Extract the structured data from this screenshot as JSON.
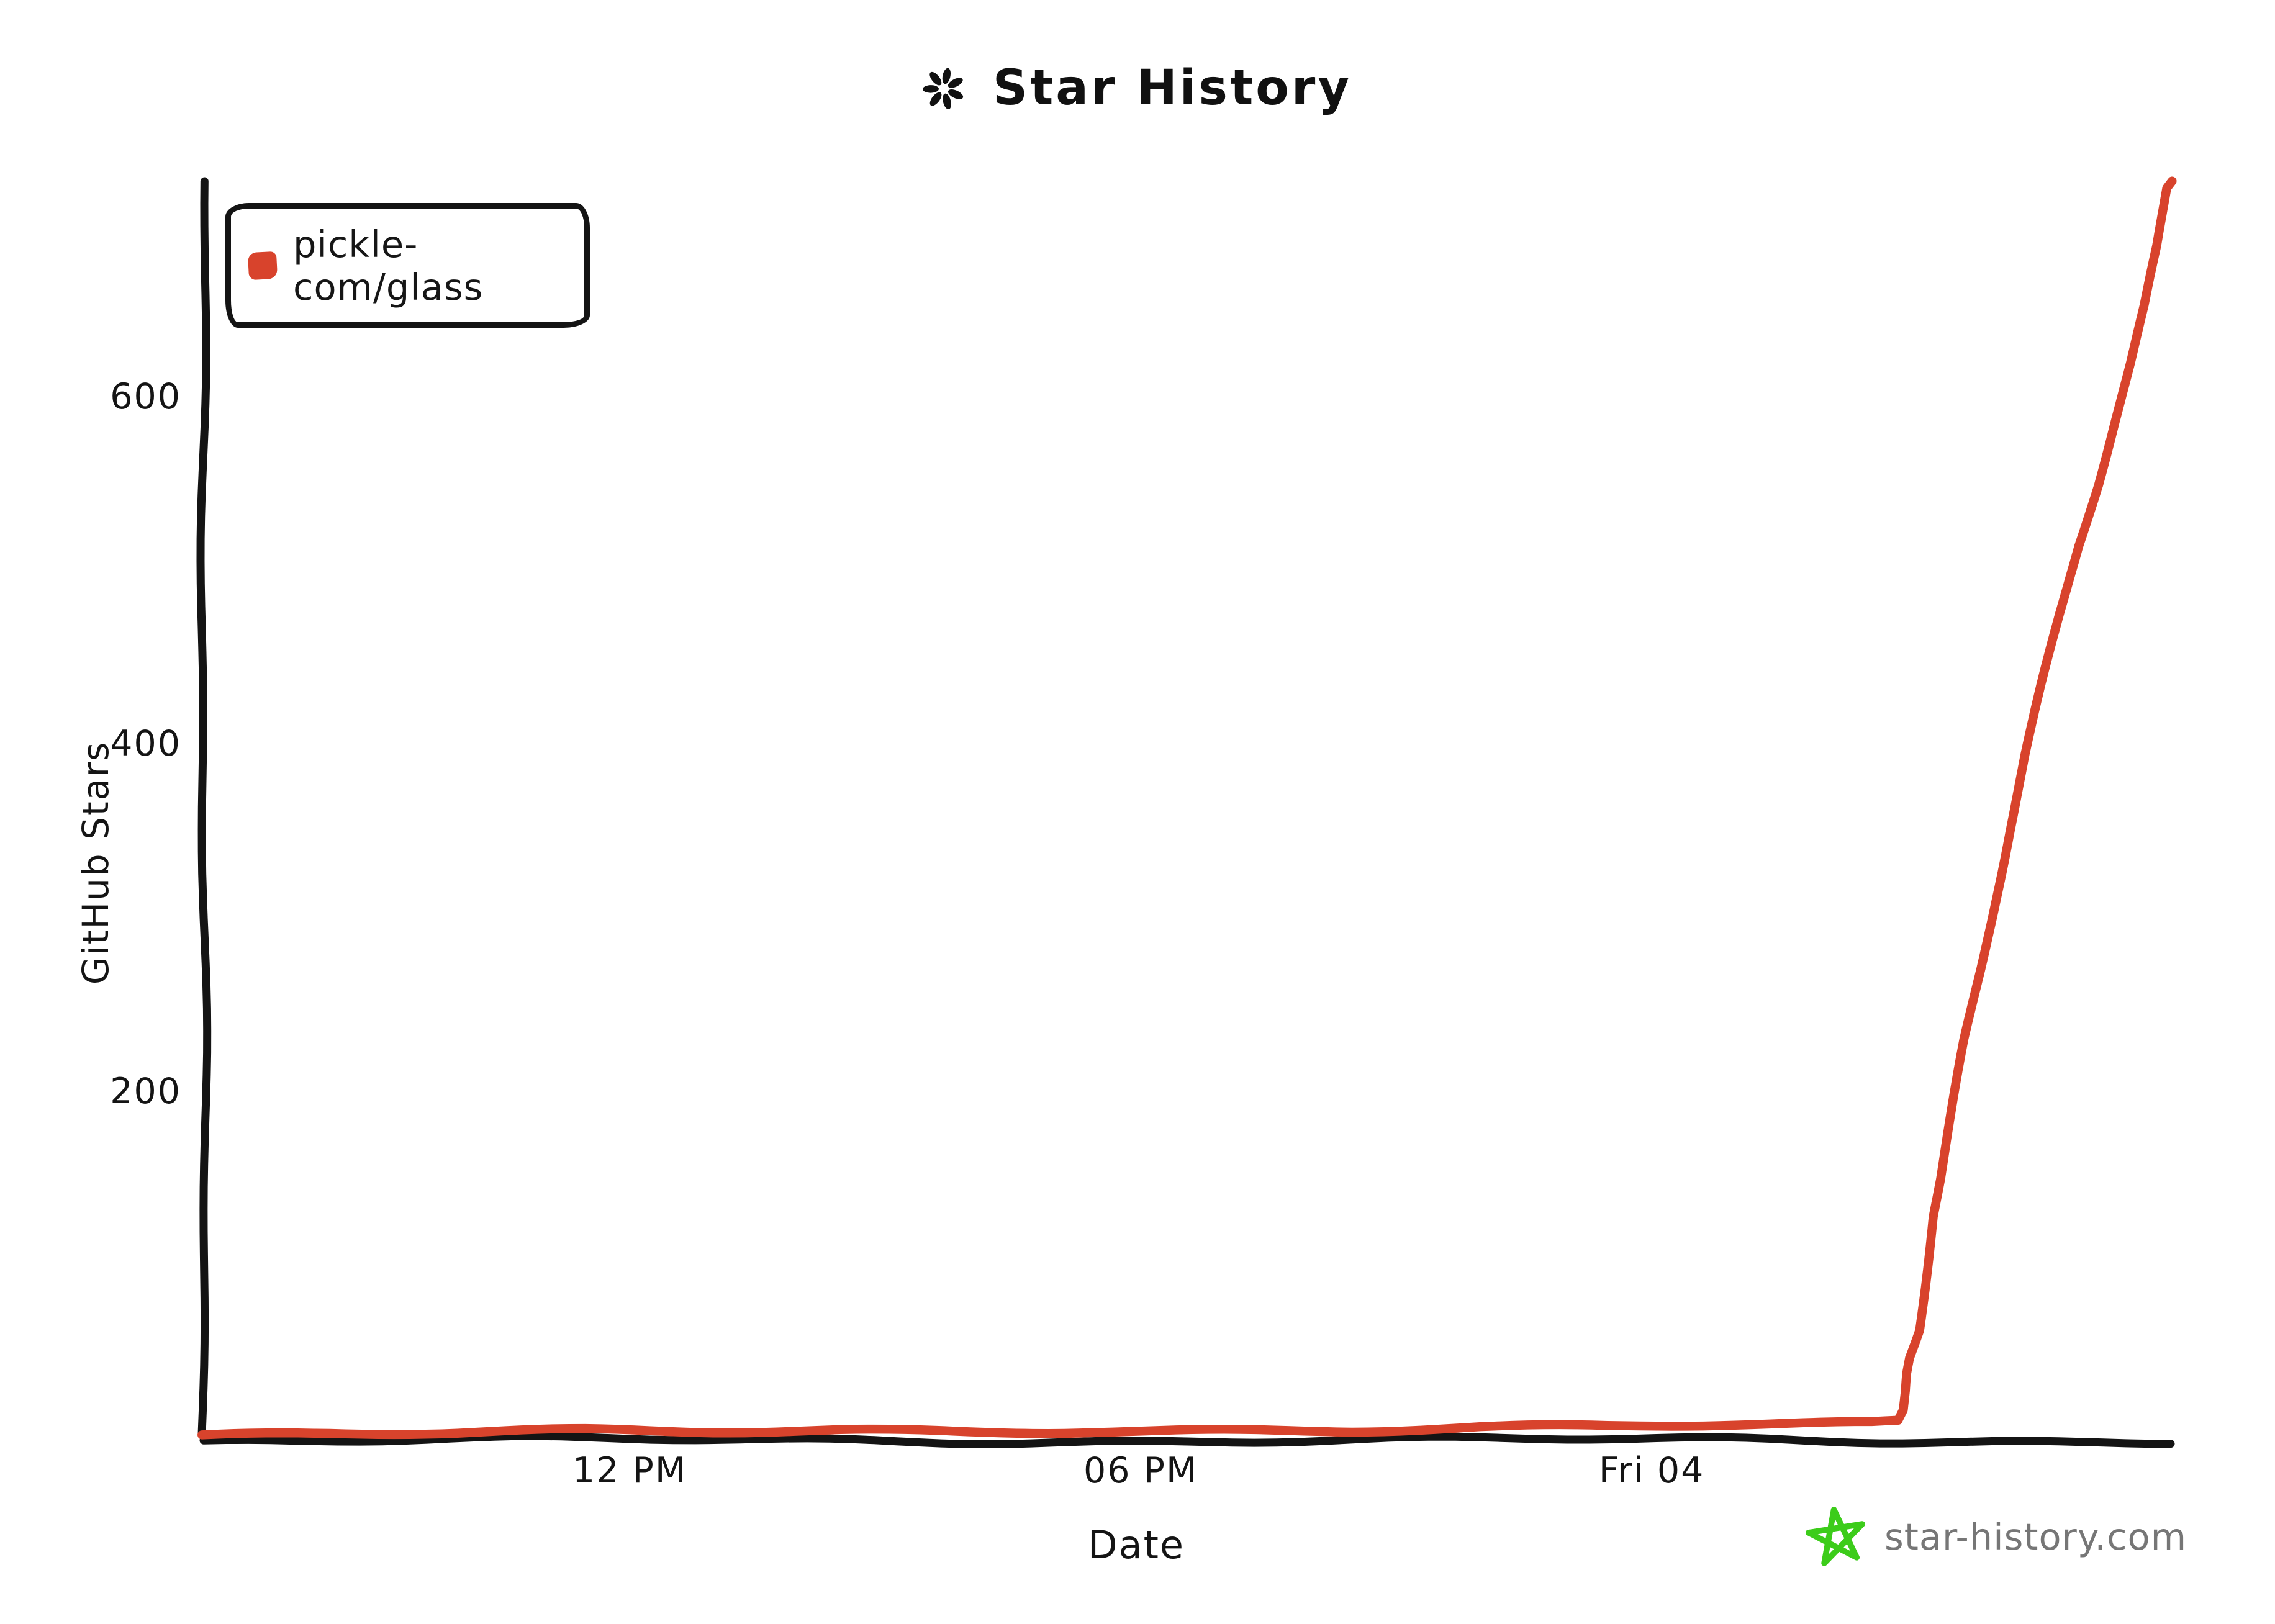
{
  "title": {
    "text": "Star History",
    "icon": "sparkle-asterisk-icon"
  },
  "legend": {
    "label": "pickle-com/glass",
    "swatch_color": "#d8432c"
  },
  "watermark": {
    "text": "star-history.com",
    "icon": "green-star-icon",
    "icon_color": "#3ccc1a",
    "text_color": "#767676"
  },
  "style": {
    "axis_color": "#141414",
    "background": "#ffffff",
    "line_color": "#d8432c"
  },
  "chart_data": {
    "type": "line",
    "title": "Star History",
    "xlabel": "Date",
    "ylabel": "GitHub Stars",
    "x_unit": "hours from chart start (spans Thu morning to Fri ~6 AM)",
    "xlim": [
      0,
      23.1
    ],
    "ylim": [
      0,
      725
    ],
    "grid": false,
    "legend_position": "top-left",
    "yticks": [
      200,
      400,
      600
    ],
    "xticks": [
      {
        "t": 5,
        "label": "12 PM"
      },
      {
        "t": 11,
        "label": "06 PM"
      },
      {
        "t": 17,
        "label": "Fri 04"
      }
    ],
    "series": [
      {
        "name": "pickle-com/glass",
        "color": "#d8432c",
        "points": [
          [
            0,
            1
          ],
          [
            1.5,
            2
          ],
          [
            3,
            2
          ],
          [
            4.5,
            3
          ],
          [
            6,
            3
          ],
          [
            7.5,
            4
          ],
          [
            9,
            4
          ],
          [
            10.5,
            5
          ],
          [
            12,
            5
          ],
          [
            13.5,
            5
          ],
          [
            15,
            6
          ],
          [
            16.5,
            6
          ],
          [
            18,
            7
          ],
          [
            19,
            7
          ],
          [
            19.6,
            7
          ],
          [
            19.91,
            8
          ],
          [
            19.97,
            14
          ],
          [
            19.99,
            25
          ],
          [
            20.0,
            35
          ],
          [
            20.03,
            44
          ],
          [
            20.1,
            54
          ],
          [
            20.14,
            60
          ],
          [
            20.22,
            93
          ],
          [
            20.3,
            126
          ],
          [
            20.4,
            148
          ],
          [
            20.55,
            188
          ],
          [
            20.7,
            229
          ],
          [
            20.88,
            270
          ],
          [
            21.04,
            310
          ],
          [
            21.21,
            351
          ],
          [
            21.4,
            394
          ],
          [
            21.6,
            435
          ],
          [
            21.8,
            475
          ],
          [
            22.0,
            514
          ],
          [
            22.22,
            549
          ],
          [
            22.42,
            585
          ],
          [
            22.62,
            619
          ],
          [
            22.79,
            652
          ],
          [
            22.93,
            686
          ],
          [
            23.03,
            719
          ],
          [
            23.09,
            723
          ]
        ]
      }
    ]
  }
}
